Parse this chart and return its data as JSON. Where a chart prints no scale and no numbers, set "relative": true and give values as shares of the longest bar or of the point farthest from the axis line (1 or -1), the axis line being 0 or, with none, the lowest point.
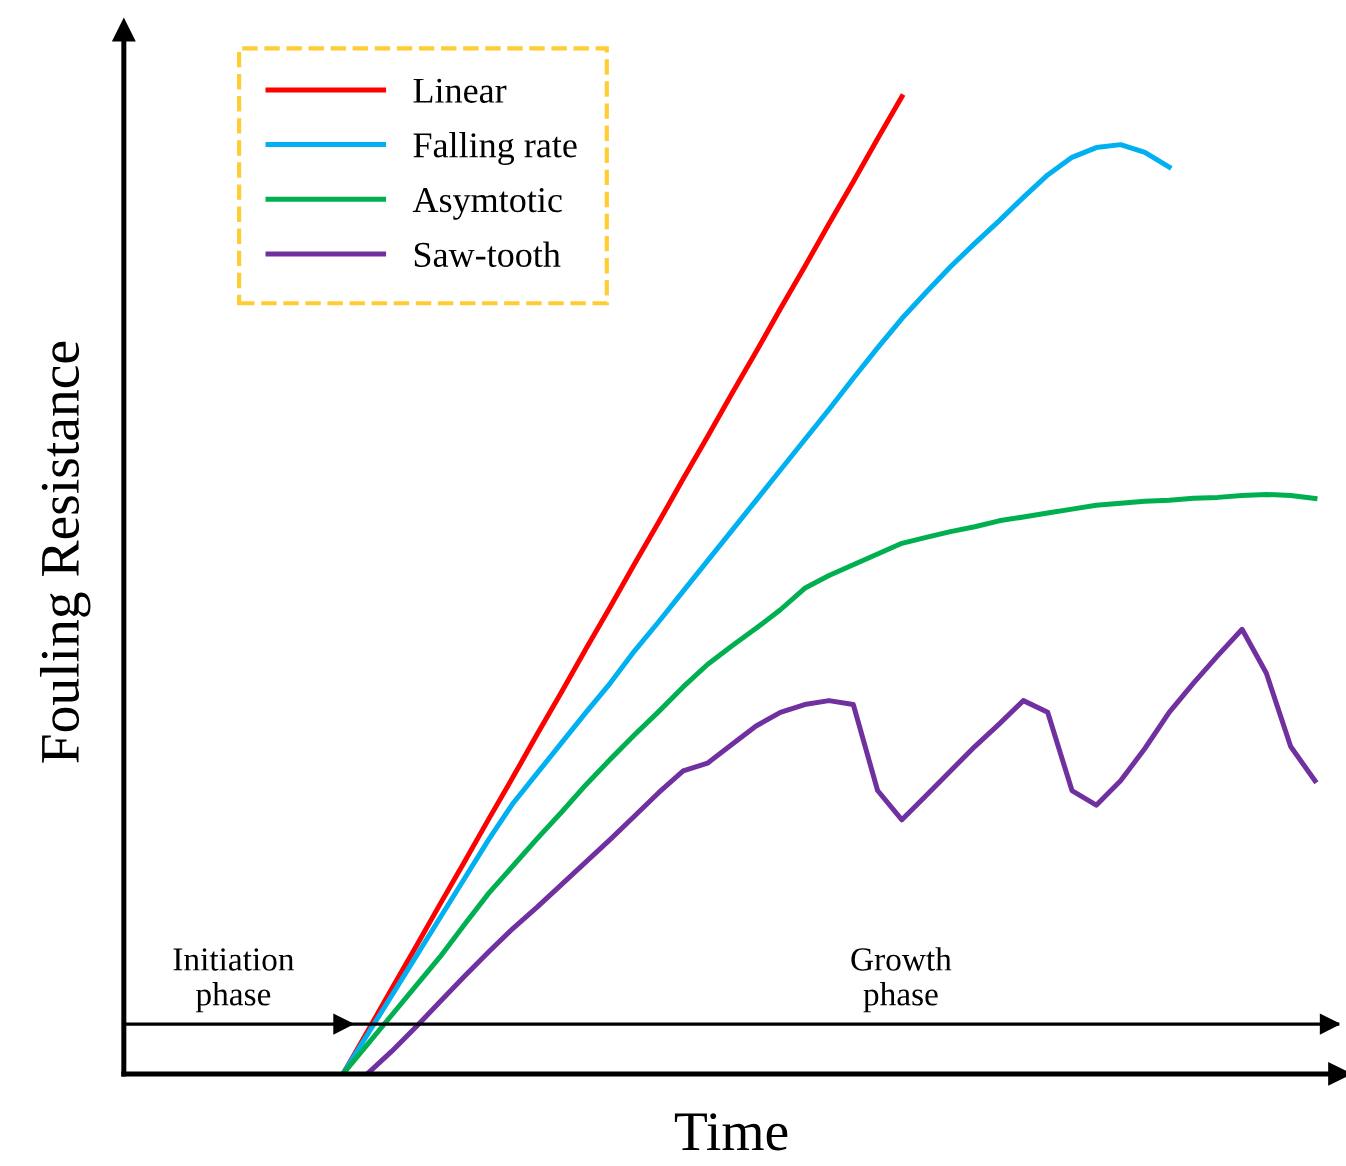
{
  "chart_data": {
    "type": "line",
    "relative": true,
    "xlabel": "Time",
    "ylabel": "Fouling Resistance",
    "legend": "top left",
    "annotations": [
      "Initiation\nphase",
      "Growth\nphase"
    ],
    "ref_lines": [
      {
        "axis": "y",
        "value": 0.051,
        "color": "#000000"
      }
    ],
    "categories": [
      null,
      null,
      null,
      null,
      null,
      null,
      null,
      null,
      null,
      null,
      null,
      null,
      null,
      null,
      null,
      null,
      null,
      null,
      null,
      null,
      null,
      null,
      null,
      null,
      null,
      null,
      null,
      null,
      null,
      null,
      null,
      null,
      null,
      null,
      null,
      null,
      null,
      null,
      null,
      null,
      null
    ],
    "series": [
      {
        "name": "Linear",
        "color": "#ff0000",
        "values": [
          0,
          0.043,
          0.087,
          0.13,
          0.174,
          0.217,
          0.261,
          0.304,
          0.348,
          0.391,
          0.435,
          0.478,
          0.522,
          0.565,
          0.609,
          0.652,
          0.696,
          0.739,
          0.783,
          0.826,
          0.87,
          0.913,
          0.957,
          1.0,
          null,
          null,
          null,
          null,
          null,
          null,
          null,
          null,
          null,
          null,
          null,
          null,
          null,
          null,
          null,
          null,
          null
        ]
      },
      {
        "name": "Falling rate",
        "color": "#00b0f0",
        "values": [
          0,
          0.04,
          0.08,
          0.12,
          0.16,
          0.2,
          0.24,
          0.277,
          0.308,
          0.339,
          0.37,
          0.4,
          0.433,
          0.463,
          0.494,
          0.525,
          0.556,
          0.587,
          0.618,
          0.649,
          0.68,
          0.712,
          0.743,
          0.773,
          0.8,
          0.826,
          0.85,
          0.873,
          0.897,
          0.92,
          0.938,
          0.948,
          0.951,
          0.943,
          0.928,
          null,
          null,
          null,
          null,
          null,
          null
        ]
      },
      {
        "name": "Asymtotic",
        "color": "#00b050",
        "values": [
          0,
          0.03,
          0.06,
          0.09,
          0.12,
          0.153,
          0.185,
          0.213,
          0.241,
          0.268,
          0.296,
          0.322,
          0.347,
          0.371,
          0.396,
          0.419,
          0.438,
          0.456,
          0.475,
          0.497,
          0.51,
          0.521,
          0.532,
          0.543,
          0.549,
          0.555,
          0.56,
          0.566,
          0.57,
          0.574,
          0.578,
          0.582,
          0.584,
          0.586,
          0.587,
          0.589,
          0.59,
          0.592,
          0.593,
          0.592,
          0.589
        ]
      },
      {
        "name": "Saw-tooth",
        "color": "#7030a0",
        "values": [
          null,
          0,
          0.023,
          0.048,
          0.074,
          0.1,
          0.125,
          0.149,
          0.171,
          0.194,
          0.217,
          0.24,
          0.264,
          0.288,
          0.31,
          0.318,
          0.337,
          0.356,
          0.37,
          0.378,
          0.382,
          0.378,
          0.29,
          0.26,
          0.285,
          0.31,
          0.335,
          0.358,
          0.382,
          0.37,
          0.29,
          0.275,
          0.3,
          0.333,
          0.37,
          0.4,
          0.428,
          0.455,
          0.41,
          0.335,
          0.3
        ]
      }
    ]
  }
}
